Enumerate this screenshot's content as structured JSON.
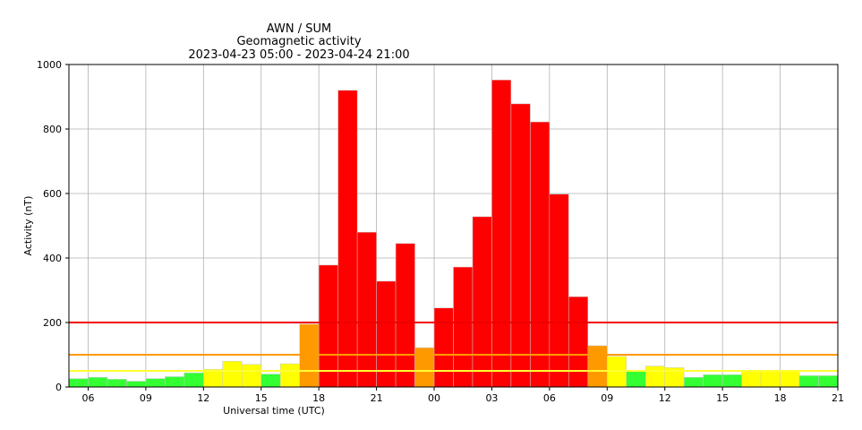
{
  "chart_data": {
    "type": "bar",
    "title_lines": [
      "AWN / SUM",
      "Geomagnetic activity",
      "2023-04-23 05:00 - 2023-04-24 21:00"
    ],
    "xlabel": "Universal time (UTC)",
    "ylabel": "Activity (nT)",
    "ylim": [
      0,
      1000
    ],
    "yticks": [
      0,
      200,
      400,
      600,
      800,
      1000
    ],
    "x_hours_range": [
      0,
      40
    ],
    "xticks": [
      {
        "hour": 1,
        "label": "06"
      },
      {
        "hour": 4,
        "label": "09"
      },
      {
        "hour": 7,
        "label": "12"
      },
      {
        "hour": 10,
        "label": "15"
      },
      {
        "hour": 13,
        "label": "18"
      },
      {
        "hour": 16,
        "label": "21"
      },
      {
        "hour": 19,
        "label": "00"
      },
      {
        "hour": 22,
        "label": "03"
      },
      {
        "hour": 25,
        "label": "06"
      },
      {
        "hour": 28,
        "label": "09"
      },
      {
        "hour": 31,
        "label": "12"
      },
      {
        "hour": 34,
        "label": "15"
      },
      {
        "hour": 37,
        "label": "18"
      },
      {
        "hour": 40,
        "label": "21"
      }
    ],
    "grid": true,
    "threshold_lines": [
      {
        "value": 200,
        "color": "#ee0000"
      },
      {
        "value": 100,
        "color": "#ff9900"
      },
      {
        "value": 50,
        "color": "#ffff33"
      }
    ],
    "level_colors": {
      "quiet": "#33ff33",
      "active": "#ffff00",
      "storm": "#ff9900",
      "severe": "#ff0000"
    },
    "values": [
      26,
      30,
      24,
      18,
      26,
      32,
      44,
      55,
      80,
      70,
      40,
      72,
      195,
      378,
      920,
      480,
      328,
      445,
      122,
      245,
      372,
      528,
      952,
      878,
      822,
      598,
      280,
      128,
      95,
      48,
      65,
      60,
      30,
      38,
      38,
      52,
      52,
      52,
      35,
      35
    ]
  }
}
